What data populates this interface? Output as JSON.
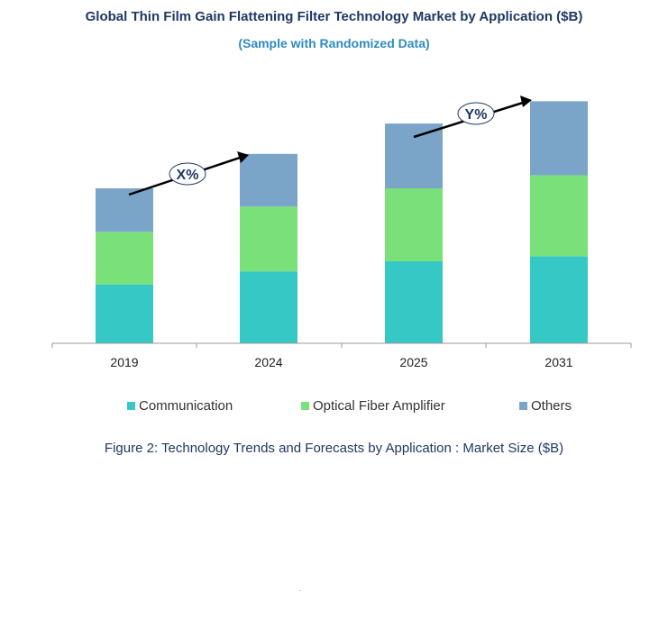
{
  "chart_data": {
    "type": "bar",
    "stacked": true,
    "title": "Global Thin Film Gain Flattening Filter Technology Market by Application ($B)",
    "subtitle": "(Sample with Randomized Data)",
    "categories": [
      "2019",
      "2024",
      "2025",
      "2031"
    ],
    "series": [
      {
        "name": "Communication",
        "color": "#36c8c4",
        "values": [
          58,
          71,
          81,
          86
        ]
      },
      {
        "name": "Optical Fiber Amplifier",
        "color": "#7ae07a",
        "values": [
          52,
          64,
          72,
          80
        ]
      },
      {
        "name": "Others",
        "color": "#7aa5c9",
        "values": [
          43,
          52,
          64,
          73
        ]
      }
    ],
    "ylim": [
      0,
      250
    ],
    "grid": false,
    "legend_position": "bottom",
    "annotations": [
      "X%",
      "Y%"
    ]
  },
  "caption": "Figure 2: Technology  Trends  and Forecasts by Application : Market Size ($B)",
  "footer_mark": "."
}
